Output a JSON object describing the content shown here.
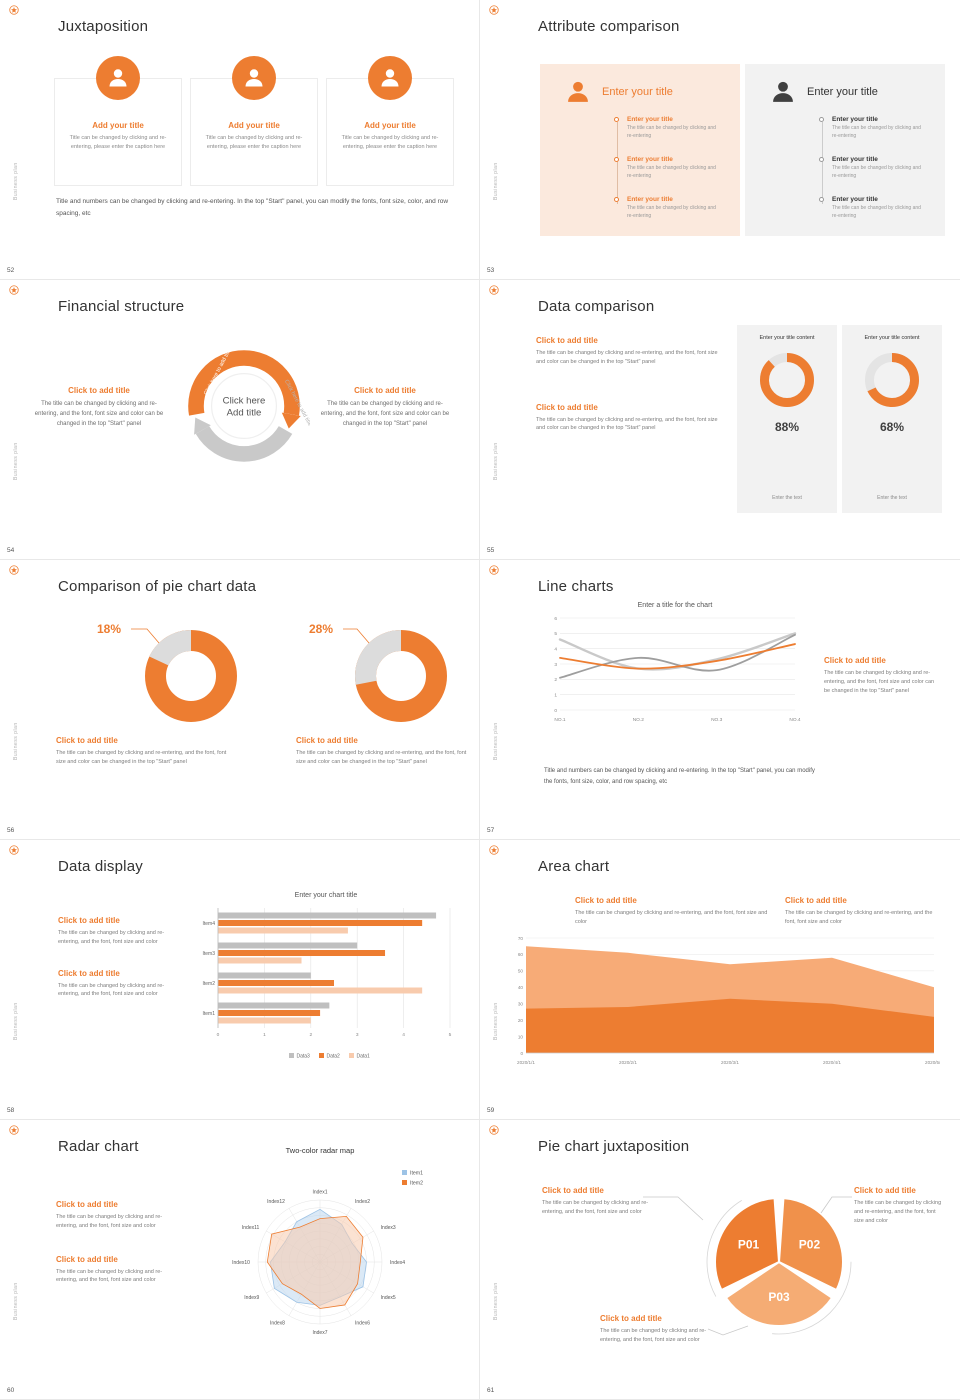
{
  "brand": {
    "name": "Business plan"
  },
  "colors": {
    "accent": "#ED7D31",
    "accent_light": "#F8CBAD",
    "panel_orange": "#FBE9DD",
    "panel_gray": "#F2F2F2"
  },
  "slides": [
    {
      "number": "52",
      "title": "Juxtaposition",
      "cards": [
        {
          "title": "Add your title",
          "text": "Title can be changed by clicking and re-entering, please enter the caption here"
        },
        {
          "title": "Add your title",
          "text": "Title can be changed by clicking and re-entering, please enter the caption here"
        },
        {
          "title": "Add your title",
          "text": "Title can be changed by clicking and re-entering, please enter the caption here"
        }
      ],
      "footer": "Title and numbers can be changed by clicking and re-entering. In the top \"Start\" panel, you can modify the fonts, font size, color, and row spacing, etc"
    },
    {
      "number": "53",
      "title": "Attribute comparison",
      "panels": [
        {
          "title": "Enter your title",
          "items": [
            {
              "title": "Enter your title",
              "text": "The title can be changed by clicking and re-entering"
            },
            {
              "title": "Enter your title",
              "text": "The title can be changed by clicking and re-entering"
            },
            {
              "title": "Enter your title",
              "text": "The title can be changed by clicking and re-entering"
            }
          ]
        },
        {
          "title": "Enter your title",
          "items": [
            {
              "title": "Enter your title",
              "text": "The title can be changed by clicking and re-entering"
            },
            {
              "title": "Enter your title",
              "text": "The title can be changed by clicking and re-entering"
            },
            {
              "title": "Enter your title",
              "text": "The title can be changed by clicking and re-entering"
            }
          ]
        }
      ]
    },
    {
      "number": "54",
      "title": "Financial structure",
      "diagram": {
        "center_line1": "Click here",
        "center_line2": "Add title",
        "label_left": "Click here to add title",
        "label_right": "Click here to add title"
      },
      "left": {
        "title": "Click to add title",
        "text": "The title can be changed by clicking and re-entering, and the font, font size and color can be changed in the top \"Start\" panel"
      },
      "right": {
        "title": "Click to add title",
        "text": "The title can be changed by clicking and re-entering, and the font, font size and color can be changed in the top \"Start\" panel"
      }
    },
    {
      "number": "55",
      "title": "Data comparison",
      "sections": [
        {
          "title": "Click to add title",
          "text": "The title can be changed by clicking and re-entering, and the font, font size and color can be changed in the top \"Start\" panel"
        },
        {
          "title": "Click to add title",
          "text": "The title can be changed by clicking and re-entering, and the font, font size and color can be changed in the top \"Start\" panel"
        }
      ],
      "gauges": [
        {
          "header": "Enter your title content",
          "percent": 88,
          "label": "88%",
          "footer": "Enter the text"
        },
        {
          "header": "Enter your title content",
          "percent": 68,
          "label": "68%",
          "footer": "Enter the text"
        }
      ]
    },
    {
      "number": "56",
      "title": "Comparison of pie chart data",
      "donuts": [
        {
          "percent": 18,
          "label": "18%",
          "title": "Click to add title",
          "text": "The title can be changed by clicking and re-entering, and the font, font size and color can be changed in the top \"Start\" panel"
        },
        {
          "percent": 28,
          "label": "28%",
          "title": "Click to add title",
          "text": "The title can be changed by clicking and re-entering, and the font, font size and color can be changed in the top \"Start\" panel"
        }
      ]
    },
    {
      "number": "57",
      "title": "Line charts",
      "chart_data": {
        "type": "line",
        "title": "Enter a title for the chart",
        "categories": [
          "NO.1",
          "NO.2",
          "NO.3",
          "NO.4"
        ],
        "ylim": [
          0,
          6
        ],
        "series": [
          {
            "name": "series-light-gray",
            "color": "#C9C9C9",
            "values": [
              4.6,
              2.7,
              3.3,
              5.0
            ]
          },
          {
            "name": "series-dark-gray",
            "color": "#9E9E9E",
            "values": [
              2.1,
              3.4,
              2.6,
              4.9
            ]
          },
          {
            "name": "series-orange",
            "color": "#ED7D31",
            "values": [
              3.4,
              2.7,
              3.2,
              4.3
            ]
          }
        ]
      },
      "side": {
        "title": "Click to add title",
        "text": "The title can be changed by clicking and re-entering, and the font, font size and color can be changed in the top \"Start\" panel"
      },
      "footer": "Title and numbers can be changed by clicking and re-entering. In the top \"Start\" panel, you can modify the fonts, font size, color, and row spacing, etc"
    },
    {
      "number": "58",
      "title": "Data display",
      "sections": [
        {
          "title": "Click to add title",
          "text": "The title can be changed by clicking and re-entering, and the font, font size and color"
        },
        {
          "title": "Click to add title",
          "text": "The title can be changed by clicking and re-entering, and the font, font size and color"
        }
      ],
      "chart_data": {
        "type": "bar",
        "title": "Enter your chart title",
        "categories": [
          "Item1",
          "Item2",
          "Item3",
          "Item4"
        ],
        "xlim": [
          0,
          5
        ],
        "xticks": [
          0,
          1,
          2,
          3,
          4,
          5
        ],
        "series": [
          {
            "name": "Data3",
            "color": "#BFBFBF",
            "values": [
              2.4,
              2.0,
              3.0,
              4.7
            ]
          },
          {
            "name": "Data2",
            "color": "#ED7D31",
            "values": [
              2.2,
              2.5,
              3.6,
              4.4
            ]
          },
          {
            "name": "Data1",
            "color": "#F8CBAD",
            "values": [
              2.0,
              4.4,
              1.8,
              2.8
            ]
          }
        ],
        "legend": [
          "Data3",
          "Data2",
          "Data1"
        ]
      }
    },
    {
      "number": "59",
      "title": "Area chart",
      "sections": [
        {
          "title": "Click to add title",
          "text": "The title can be changed by clicking and re-entering, and the font, font size and color"
        },
        {
          "title": "Click to add title",
          "text": "The title can be changed by clicking and re-entering, and the font, font size and color"
        }
      ],
      "chart_data": {
        "type": "area",
        "categories": [
          "2020/1/1",
          "2020/2/1",
          "2020/3/1",
          "2020/4/1",
          "2020/5/1"
        ],
        "ylim": [
          0,
          70
        ],
        "yticks": [
          0,
          10,
          20,
          30,
          40,
          50,
          60,
          70
        ],
        "series": [
          {
            "name": "area-light",
            "color": "#F7AB77",
            "values": [
              65,
              61,
              54,
              58,
              40
            ]
          },
          {
            "name": "area-dark",
            "color": "#ED7D31",
            "values": [
              27,
              28,
              33,
              30,
              22
            ]
          }
        ]
      }
    },
    {
      "number": "60",
      "title": "Radar chart",
      "sections": [
        {
          "title": "Click to add title",
          "text": "The title can be changed by clicking and re-entering, and the font, font size and color"
        },
        {
          "title": "Click to add title",
          "text": "The title can be changed by clicking and re-entering, and the font, font size and color"
        }
      ],
      "chart_data": {
        "type": "radar",
        "title": "Two-color radar map",
        "axes": [
          "Index1",
          "Index2",
          "Index3",
          "Index4",
          "Index5",
          "Index6",
          "Index7",
          "Index8",
          "Index9",
          "Index10",
          "Index11",
          "Index12"
        ],
        "series": [
          {
            "name": "Item1",
            "color": "#9DC3E6",
            "values": [
              0.85,
              0.7,
              0.6,
              0.75,
              0.8,
              0.65,
              0.7,
              0.75,
              0.85,
              0.8,
              0.65,
              0.75
            ]
          },
          {
            "name": "Item2",
            "color": "#ED7D31",
            "values": [
              0.7,
              0.85,
              0.8,
              0.65,
              0.7,
              0.8,
              0.75,
              0.6,
              0.7,
              0.85,
              0.9,
              0.65
            ]
          }
        ]
      }
    },
    {
      "number": "61",
      "title": "Pie chart juxtaposition",
      "pie": {
        "segments": [
          {
            "label": "P01",
            "value": 33,
            "color": "#ED7D31"
          },
          {
            "label": "P02",
            "value": 33,
            "color": "#F0914B"
          },
          {
            "label": "P03",
            "value": 34,
            "color": "#F5AC74"
          }
        ]
      },
      "blocks": [
        {
          "title": "Click to add title",
          "text": "The title can be changed by clicking and re-entering, and the font, font size and color"
        },
        {
          "title": "Click to add title",
          "text": "The title can be changed by clicking and re-entering, and the font, font size and color"
        },
        {
          "title": "Click to add title",
          "text": "The title can be changed by clicking and re-entering, and the font, font size and color"
        }
      ]
    }
  ]
}
